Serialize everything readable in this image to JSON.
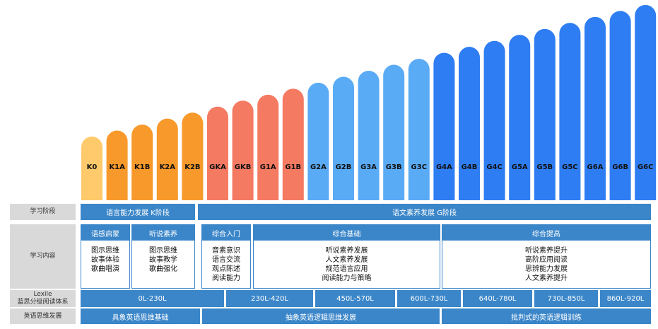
{
  "colors": {
    "stage_K0": "#ffca6b",
    "stage_K": "#f7992b",
    "stage_GK": "#f57a62",
    "stage_G1_3": "#5aabf5",
    "stage_G4_6": "#2f7df2",
    "table_blue": "#3b86c9",
    "table_label_bg": "#d9d9d9"
  },
  "chart_data": {
    "type": "bar",
    "categories": [
      "K0",
      "K1A",
      "K1B",
      "K2A",
      "K2B",
      "GKA",
      "GKB",
      "G1A",
      "G1B",
      "G2A",
      "G2B",
      "G3A",
      "G3B",
      "G3C",
      "G4A",
      "G4B",
      "G4C",
      "G5A",
      "G5B",
      "G5C",
      "G6A",
      "G6B",
      "G6C"
    ],
    "values": [
      1,
      2,
      3,
      4,
      5,
      6,
      7,
      8,
      9,
      10,
      11,
      12,
      13,
      14,
      15,
      16,
      17,
      18,
      19,
      20,
      21,
      22,
      23
    ],
    "color_groups": [
      "stage_K0",
      "stage_K",
      "stage_K",
      "stage_K",
      "stage_K",
      "stage_GK",
      "stage_GK",
      "stage_GK",
      "stage_GK",
      "stage_G1_3",
      "stage_G1_3",
      "stage_G1_3",
      "stage_G1_3",
      "stage_G1_3",
      "stage_G4_6",
      "stage_G4_6",
      "stage_G4_6",
      "stage_G4_6",
      "stage_G4_6",
      "stage_G4_6",
      "stage_G4_6",
      "stage_G4_6",
      "stage_G4_6"
    ],
    "title": "",
    "xlabel": "",
    "ylabel": ""
  },
  "table": {
    "row_labels": {
      "stage": "学习阶段",
      "content": "学习内容",
      "lexile_line1": "Lexile",
      "lexile_line2": "蓝思分级阅读体系",
      "thinking": "英语思维发展"
    },
    "stage": {
      "k": "语言能力发展  K阶段",
      "g": "语文素养发展 G阶段"
    },
    "content": [
      {
        "head": "语感启蒙",
        "items": [
          "图示思维",
          "故事体验",
          "歌曲唱演"
        ]
      },
      {
        "head": "听说素养",
        "items": [
          "图示思维",
          "故事教学",
          "歌曲强化"
        ]
      },
      {
        "head": "综合入门",
        "items": [
          "音素意识",
          "语言交流",
          "观点陈述",
          "阅读能力"
        ]
      },
      {
        "head": "综合基础",
        "items": [
          "听说素养发展",
          "人文素养发展",
          "规范语言应用",
          "阅读能力与策略"
        ]
      },
      {
        "head": "综合提高",
        "items": [
          "听说素养提升",
          "高阶应用阅读",
          "思辨能力发展",
          "人文素养提升"
        ]
      }
    ],
    "lexile": [
      "0L-230L",
      "230L-420L",
      "450L-570L",
      "600L-730L",
      "640L-780L",
      "730L-850L",
      "860L-920L"
    ],
    "thinking": [
      "具象英语思维基础",
      "抽象英语逻辑思维发展",
      "批判式的英语逻辑训练"
    ]
  }
}
